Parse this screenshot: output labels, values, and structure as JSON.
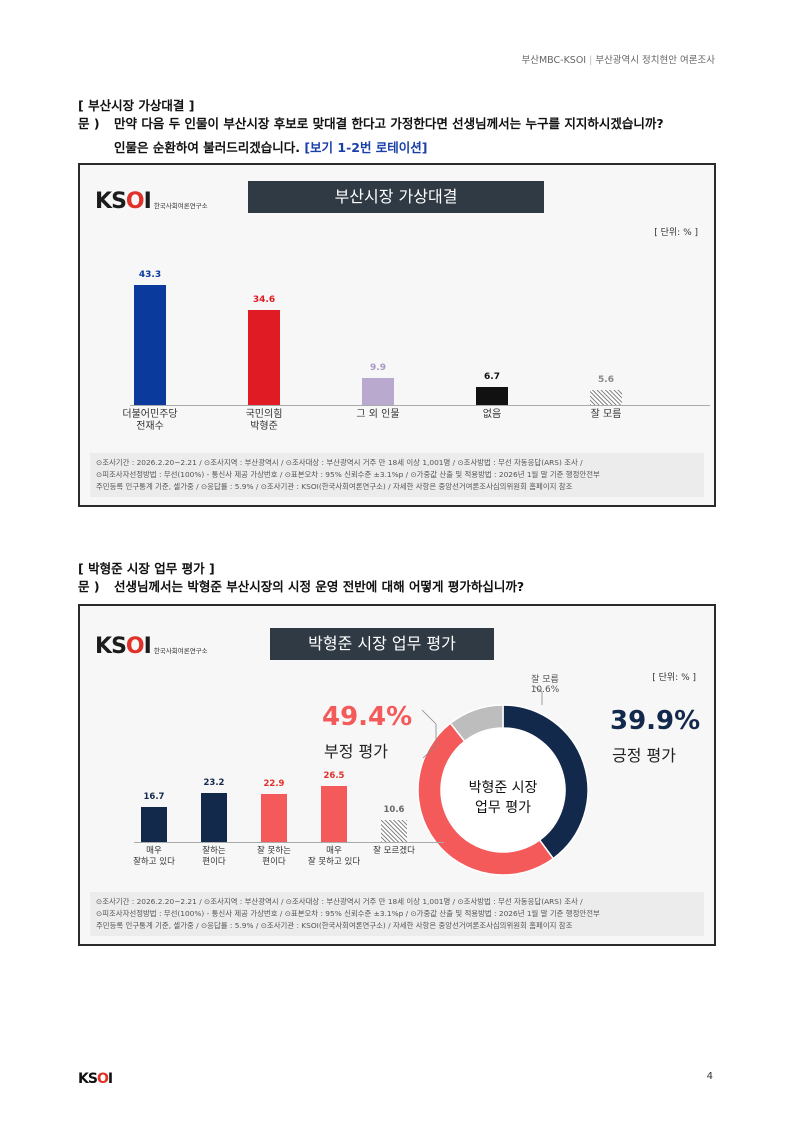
{
  "header": {
    "left": "부산MBC-KSOI",
    "right": "부산광역시 정치현안 여론조사"
  },
  "section1": {
    "title": "[ 부산시장 가상대결 ]",
    "q_label": "문 )",
    "q_line1": "만약 다음 두 인물이 부산시장 후보로 맞대결 한다고 가정한다면 선생님께서는 누구를 지지하시겠습니까?",
    "q_line2": "인물은 순환하여 불러드리겠습니다.",
    "q_rotation": "[보기 1-2번 로테이션]"
  },
  "chart1": {
    "logo_text": "KSOI",
    "logo_sub": "한국사회여론연구소",
    "title": "부산시장 가상대결",
    "unit": "[ 단위: % ]"
  },
  "section2": {
    "title": "[ 박형준 시장 업무 평가 ]",
    "q_label": "문 )",
    "q_line1": "선생님께서는 박형준 부산시장의 시정 운영 전반에 대해 어떻게 평가하십니까?"
  },
  "chart2": {
    "logo_text": "KSOI",
    "logo_sub": "한국사회여론연구소",
    "title": "박형준 시장 업무 평가",
    "unit": "[ 단위: % ]",
    "neg_pct": "49.4%",
    "neg_label": "부정 평가",
    "pos_pct": "39.9%",
    "pos_label": "긍정 평가",
    "dk_label": "잘 모름",
    "dk_pct": "10.6%",
    "center_line1": "박형준 시장",
    "center_line2": "업무 평가"
  },
  "footnote": {
    "l1_a": "⊙조사기간 : 2026.2.20~2.21 / ⊙조사지역 : 부산광역시 / ⊙조사대상 : 부산광역시 거주 만 18세 이상 1,001명 / ⊙조사방법 : 무선 자동응답(ARS) 조사 /",
    "l2_a": "⊙피조사자선정방법 : 무선(100%) - 통신사 제공 가상번호 / ⊙표본오차 : 95% 신뢰수준 ±3.1%p / ⊙가중값 산출 및 적용방법 : 2026년 1월 말 기준 행정안전부",
    "l3_a": "주민등록 인구통계 기준, 셀가중 / ⊙응답률 : 5.9% / ⊙조사기관 : KSOI(한국사회여론연구소) / 자세한 사항은 중앙선거여론조사심의위원회 홈페이지 참조"
  },
  "chart_data": [
    {
      "type": "bar",
      "title": "부산시장 가상대결",
      "categories": [
        "더불어민주당 전재수",
        "국민의힘 박형준",
        "그 외 인물",
        "없음",
        "잘 모름"
      ],
      "cat_lines": [
        [
          "더불어민주당",
          "전재수"
        ],
        [
          "국민의힘",
          "박형준"
        ],
        [
          "그 외 인물",
          ""
        ],
        [
          "없음",
          ""
        ],
        [
          "잘 모름",
          ""
        ]
      ],
      "values": [
        43.3,
        34.6,
        9.9,
        6.7,
        5.6
      ],
      "labels": [
        "43.3",
        "34.6",
        "9.9",
        "6.7",
        "5.6"
      ],
      "colors": [
        "#0a3a9c",
        "#e01b24",
        "#b9a9cf",
        "#111111",
        "hatch"
      ],
      "label_colors": [
        "#0a3a9c",
        "#e01b24",
        "#a898c4",
        "#111111",
        "#888888"
      ],
      "ylim": [
        0,
        50
      ]
    },
    {
      "type": "pie",
      "title": "박형준 시장 업무 평가",
      "categories": [
        "긍정 평가",
        "부정 평가",
        "잘 모름"
      ],
      "values": [
        39.9,
        49.4,
        10.6
      ],
      "colors": [
        "#13294b",
        "#f45a5a",
        "#bdbdbd"
      ]
    },
    {
      "type": "bar",
      "categories": [
        "매우 잘하고 있다",
        "잘하는 편이다",
        "잘 못하는 편이다",
        "매우 잘 못하고 있다",
        "잘 모르겠다"
      ],
      "cat_lines": [
        [
          "매우",
          "잘하고 있다"
        ],
        [
          "잘하는",
          "편이다"
        ],
        [
          "잘 못하는",
          "편이다"
        ],
        [
          "매우",
          "잘 못하고 있다"
        ],
        [
          "잘 모르겠다",
          ""
        ]
      ],
      "values": [
        16.7,
        23.2,
        22.9,
        26.5,
        10.6
      ],
      "labels": [
        "16.7",
        "23.2",
        "22.9",
        "26.5",
        "10.6"
      ],
      "colors": [
        "#13294b",
        "#13294b",
        "#f45a5a",
        "#f45a5a",
        "hatch"
      ],
      "label_colors": [
        "#13294b",
        "#13294b",
        "#e0322a",
        "#e0322a",
        "#666666"
      ],
      "ylim": [
        0,
        30
      ]
    }
  ]
}
